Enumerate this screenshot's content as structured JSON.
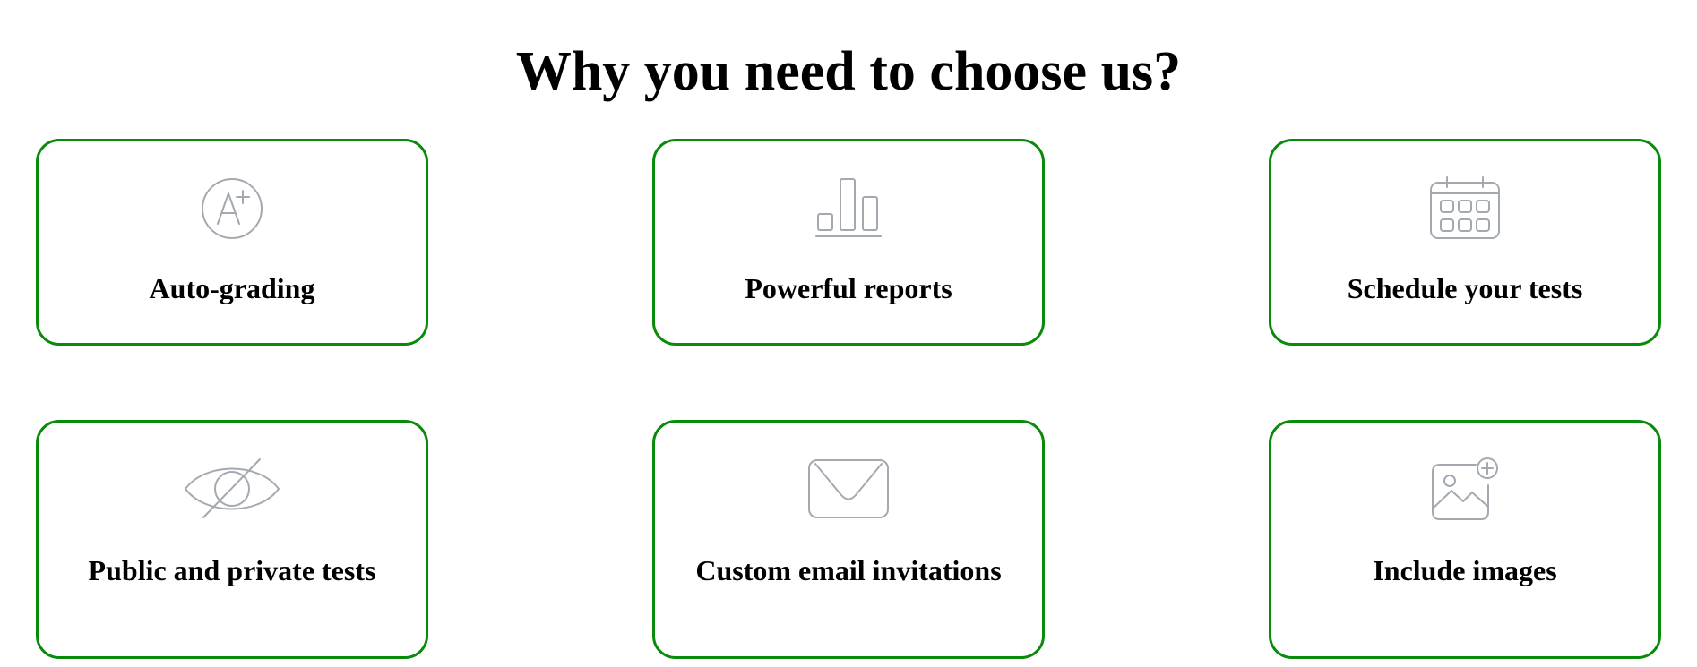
{
  "heading": "Why you need to choose us?",
  "features": [
    {
      "label": "Auto-grading",
      "icon": "grade-a-plus-icon"
    },
    {
      "label": "Powerful reports",
      "icon": "bar-chart-icon"
    },
    {
      "label": "Schedule your tests",
      "icon": "calendar-icon"
    },
    {
      "label": "Public and private tests",
      "icon": "eye-slash-icon"
    },
    {
      "label": "Custom email invitations",
      "icon": "envelope-icon"
    },
    {
      "label": "Include images",
      "icon": "image-add-icon"
    }
  ],
  "colors": {
    "card_border": "#0a8a0a",
    "icon_stroke": "#a4a9b1",
    "text": "#000000"
  }
}
